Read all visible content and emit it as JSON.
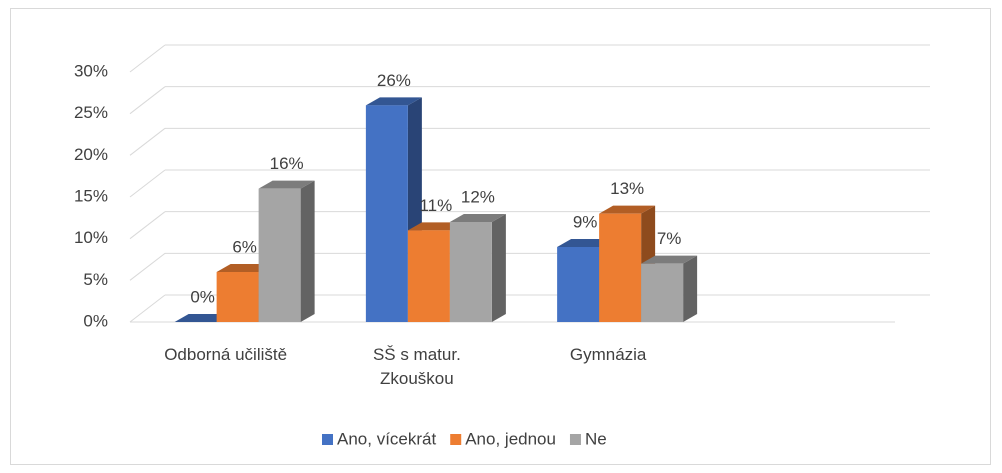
{
  "chart_data": {
    "type": "bar3d",
    "categories": [
      "Odborná učiliště",
      "SŠ s matur. Zkouškou",
      "Gymnázia"
    ],
    "series": [
      {
        "name": "Ano, vícekrát",
        "color": "#4472c4",
        "values": [
          0,
          26,
          9
        ],
        "value_labels": [
          "0%",
          "26%",
          "9%"
        ]
      },
      {
        "name": "Ano, jednou",
        "color": "#ed7d31",
        "values": [
          6,
          11,
          13
        ],
        "value_labels": [
          "6%",
          "11%",
          "13%"
        ]
      },
      {
        "name": "Ne",
        "color": "#a5a5a5",
        "values": [
          16,
          12,
          7
        ],
        "value_labels": [
          "16%",
          "12%",
          "7%"
        ]
      }
    ],
    "ylim": [
      0,
      30
    ],
    "yticks": [
      {
        "value": 0,
        "label": "0%"
      },
      {
        "value": 5,
        "label": "5%"
      },
      {
        "value": 10,
        "label": "10%"
      },
      {
        "value": 15,
        "label": "15%"
      },
      {
        "value": 20,
        "label": "20%"
      },
      {
        "value": 25,
        "label": "25%"
      },
      {
        "value": 30,
        "label": "30%"
      }
    ],
    "grid": true,
    "legend": "bottom"
  }
}
